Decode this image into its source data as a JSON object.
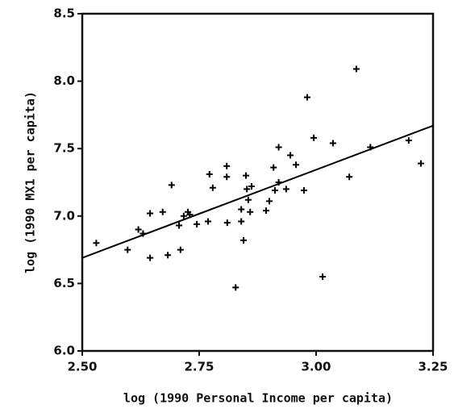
{
  "chart_data": {
    "type": "scatter",
    "xlabel": "log (1990 Personal Income per capita)",
    "ylabel": "log (1990 MX1 per capita)",
    "x": [
      2.53,
      2.597,
      2.62,
      2.63,
      2.645,
      2.645,
      2.672,
      2.683,
      2.691,
      2.707,
      2.71,
      2.717,
      2.726,
      2.73,
      2.745,
      2.769,
      2.772,
      2.779,
      2.809,
      2.809,
      2.81,
      2.828,
      2.84,
      2.84,
      2.845,
      2.85,
      2.852,
      2.855,
      2.859,
      2.862,
      2.893,
      2.9,
      2.909,
      2.912,
      2.92,
      2.92,
      2.936,
      2.945,
      2.957,
      2.974,
      2.981,
      2.995,
      3.014,
      3.036,
      3.071,
      3.086,
      3.116,
      3.198,
      3.224
    ],
    "values": [
      6.8,
      6.75,
      6.9,
      6.87,
      7.02,
      6.69,
      7.03,
      6.71,
      7.23,
      6.93,
      6.75,
      7.0,
      7.03,
      7.01,
      6.94,
      6.96,
      7.31,
      7.21,
      7.37,
      7.29,
      6.95,
      6.47,
      6.96,
      7.05,
      6.82,
      7.3,
      7.2,
      7.12,
      7.03,
      7.22,
      7.04,
      7.11,
      7.36,
      7.19,
      7.25,
      7.51,
      7.2,
      7.45,
      7.38,
      7.19,
      7.88,
      7.58,
      6.55,
      7.54,
      7.29,
      8.09,
      7.51,
      7.56,
      7.39
    ],
    "color": "#000000",
    "fit": {
      "x": [
        2.5,
        3.25
      ],
      "values": [
        6.69,
        7.67
      ]
    },
    "xlim": [
      2.5,
      3.25
    ],
    "ylim": [
      6.0,
      8.5
    ],
    "xticks": [
      {
        "value": 2.5,
        "label": "2.50"
      },
      2.75,
      {
        "value": 3.0,
        "label": "3.00"
      },
      3.25
    ],
    "yticks": [
      {
        "value": 6.0,
        "label": "6.0"
      },
      6.5,
      {
        "value": 7.0,
        "label": "7.0"
      },
      7.5,
      {
        "value": 8.0,
        "label": "8.0"
      },
      8.5
    ]
  }
}
